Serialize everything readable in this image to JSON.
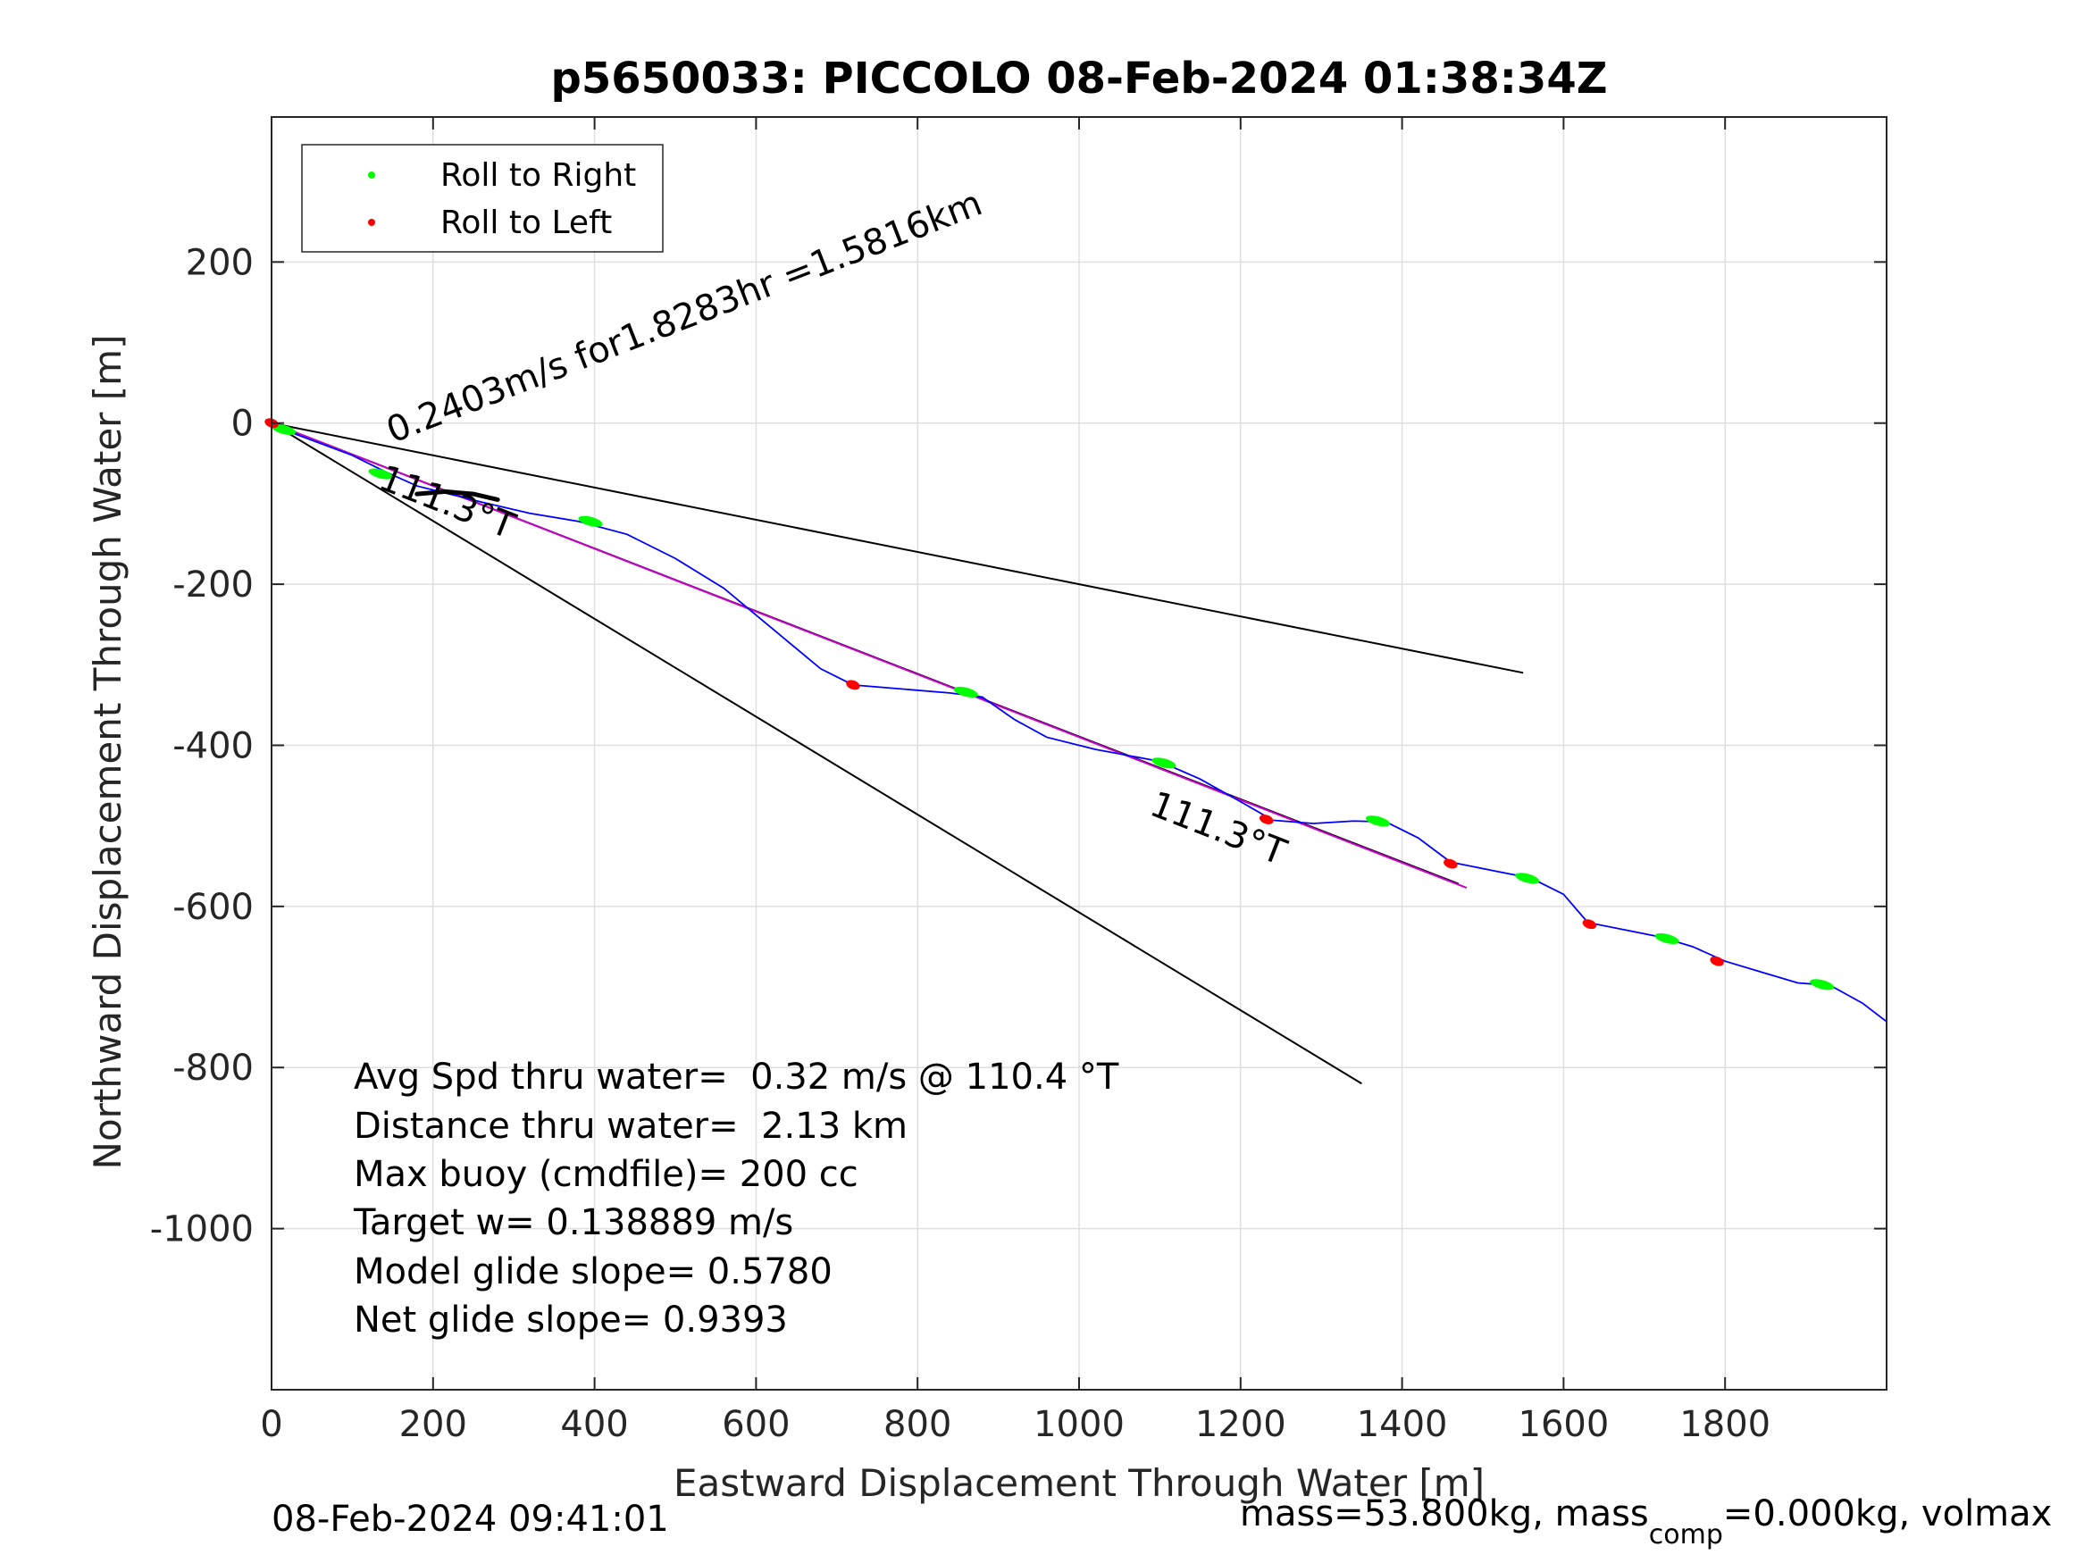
{
  "chart_data": {
    "type": "scatter",
    "title": "p5650033: PICCOLO 08-Feb-2024 01:38:34Z",
    "xlabel": "Eastward Displacement Through Water [m]",
    "ylabel": "Northward Displacement Through Water [m]",
    "xlim": [
      0,
      2000
    ],
    "ylim": [
      -1200,
      380
    ],
    "xticks": [
      0,
      200,
      400,
      600,
      800,
      1000,
      1200,
      1400,
      1600,
      1800
    ],
    "yticks": [
      -1000,
      -800,
      -600,
      -400,
      -200,
      0,
      200
    ],
    "grid": true,
    "legend_position": "top-left",
    "legend": [
      {
        "label": "Roll to Right",
        "color": "#00ff00"
      },
      {
        "label": "Roll to Left",
        "color": "#ff0000"
      }
    ],
    "track": {
      "color": "#0000ff",
      "points": [
        [
          0,
          0
        ],
        [
          20,
          -10
        ],
        [
          60,
          -25
        ],
        [
          100,
          -40
        ],
        [
          140,
          -60
        ],
        [
          180,
          -78
        ],
        [
          220,
          -88
        ],
        [
          260,
          -98
        ],
        [
          320,
          -112
        ],
        [
          380,
          -122
        ],
        [
          440,
          -138
        ],
        [
          500,
          -168
        ],
        [
          560,
          -205
        ],
        [
          620,
          -255
        ],
        [
          680,
          -305
        ],
        [
          720,
          -325
        ],
        [
          780,
          -330
        ],
        [
          840,
          -335
        ],
        [
          880,
          -340
        ],
        [
          920,
          -368
        ],
        [
          960,
          -390
        ],
        [
          1020,
          -405
        ],
        [
          1100,
          -420
        ],
        [
          1150,
          -442
        ],
        [
          1200,
          -470
        ],
        [
          1240,
          -493
        ],
        [
          1290,
          -497
        ],
        [
          1340,
          -494
        ],
        [
          1380,
          -495
        ],
        [
          1420,
          -515
        ],
        [
          1460,
          -545
        ],
        [
          1520,
          -557
        ],
        [
          1560,
          -565
        ],
        [
          1600,
          -585
        ],
        [
          1630,
          -620
        ],
        [
          1680,
          -630
        ],
        [
          1720,
          -638
        ],
        [
          1760,
          -650
        ],
        [
          1800,
          -668
        ],
        [
          1850,
          -683
        ],
        [
          1890,
          -695
        ],
        [
          1930,
          -698
        ],
        [
          1970,
          -720
        ],
        [
          2000,
          -743
        ]
      ]
    },
    "roll_right": [
      [
        15,
        -8
      ],
      [
        135,
        -63
      ],
      [
        395,
        -122
      ],
      [
        860,
        -334
      ],
      [
        1105,
        -422
      ],
      [
        1370,
        -494
      ],
      [
        1555,
        -565
      ],
      [
        1728,
        -640
      ],
      [
        1920,
        -697
      ]
    ],
    "roll_left": [
      [
        0,
        0
      ],
      [
        720,
        -325
      ],
      [
        1232,
        -492
      ],
      [
        1460,
        -547
      ],
      [
        1632,
        -622
      ],
      [
        1790,
        -668
      ]
    ],
    "lines": [
      {
        "color": "#000000",
        "points": [
          [
            0,
            0
          ],
          [
            1550,
            -310
          ]
        ]
      },
      {
        "color": "#000000",
        "points": [
          [
            0,
            0
          ],
          [
            1350,
            -820
          ]
        ]
      },
      {
        "color": "#000000",
        "points": [
          [
            0,
            0
          ],
          [
            1470,
            -572
          ]
        ]
      },
      {
        "color": "#cc00cc",
        "points": [
          [
            0,
            0
          ],
          [
            1480,
            -577
          ]
        ]
      }
    ],
    "current_marker": {
      "color": "#000000",
      "points": [
        [
          180,
          -88
        ],
        [
          215,
          -85
        ],
        [
          250,
          -88
        ],
        [
          280,
          -95
        ]
      ]
    },
    "annotations": [
      {
        "text": "0.2403m/s for1.8283hr =1.5816km",
        "x": 150,
        "y": -25,
        "rotation": -21.3
      },
      {
        "text": "111.3°T",
        "x": 130,
        "y": -80,
        "rotation": 21.3
      },
      {
        "text": "111.3°T",
        "x": 1085,
        "y": -485,
        "rotation": 21.3
      }
    ],
    "stats": [
      "Avg Spd thru water=  0.32 m/s @ 110.4 °T",
      "Distance thru water=  2.13 km",
      "Max buoy (cmdfile)= 200 cc",
      "Target w= 0.138889 m/s",
      "Model glide slope= 0.5780",
      "Net glide slope= 0.9393"
    ]
  },
  "footer": {
    "timestamp": "08-Feb-2024 09:41:01",
    "mass_prefix": "mass=53.800kg, mass",
    "mass_sub": "comp",
    "mass_suffix": "=0.000kg, volmax"
  }
}
